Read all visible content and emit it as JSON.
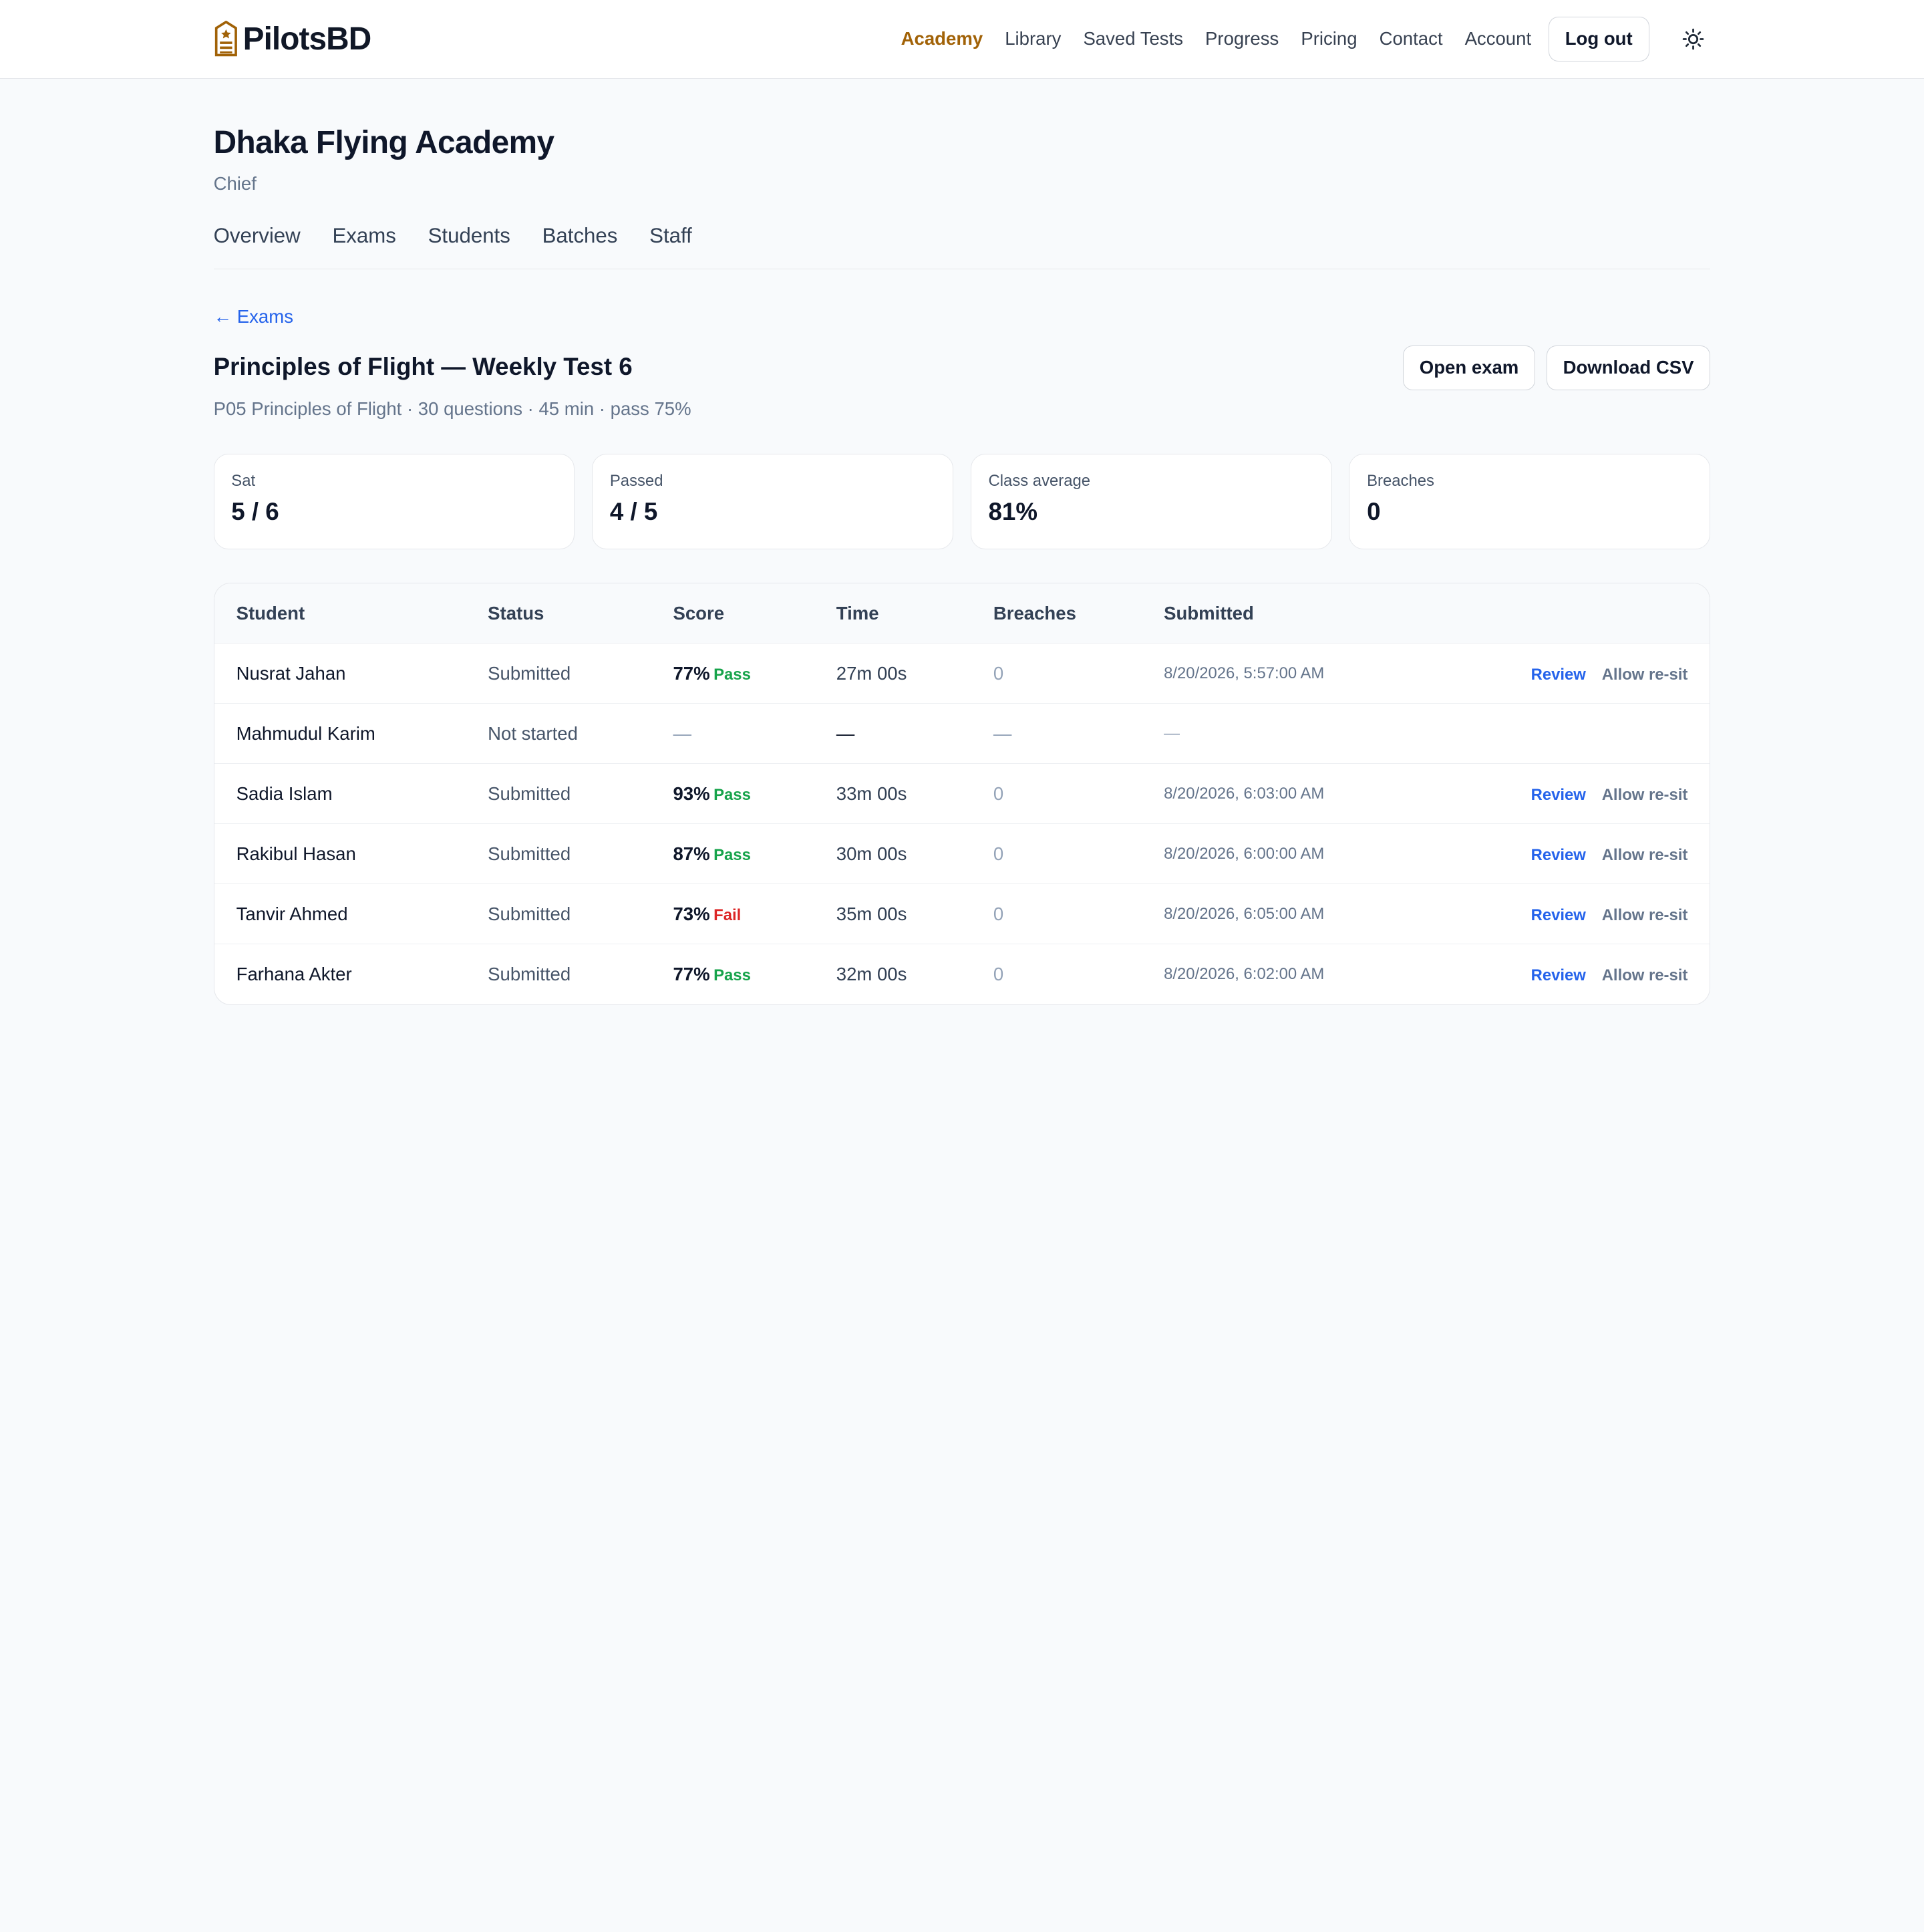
{
  "brand": {
    "name": "PilotsBD",
    "logo": "academy-badge-icon"
  },
  "nav": {
    "items": [
      {
        "label": "Academy",
        "active": true
      },
      {
        "label": "Library"
      },
      {
        "label": "Saved Tests"
      },
      {
        "label": "Progress"
      },
      {
        "label": "Pricing"
      },
      {
        "label": "Contact"
      },
      {
        "label": "Account"
      }
    ],
    "logout_label": "Log out",
    "theme_icon": "sun-icon"
  },
  "academy": {
    "title": "Dhaka Flying Academy",
    "role": "Chief"
  },
  "tabs": [
    {
      "label": "Overview"
    },
    {
      "label": "Exams"
    },
    {
      "label": "Students"
    },
    {
      "label": "Batches"
    },
    {
      "label": "Staff"
    }
  ],
  "back_link": "← Exams",
  "exam": {
    "title": "Principles of Flight — Weekly Test 6",
    "meta": "P05 Principles of Flight · 30 questions · 45 min · pass 75%",
    "open_label": "Open exam",
    "download_label": "Download CSV"
  },
  "stats": [
    {
      "label": "Sat",
      "value": "5 / 6"
    },
    {
      "label": "Passed",
      "value": "4 / 5"
    },
    {
      "label": "Class average",
      "value": "81%"
    },
    {
      "label": "Breaches",
      "value": "0"
    }
  ],
  "table": {
    "headers": {
      "student": "Student",
      "status": "Status",
      "score": "Score",
      "time": "Time",
      "breaches": "Breaches",
      "submitted": "Submitted"
    },
    "review_label": "Review",
    "resit_label": "Allow re-sit",
    "rows": [
      {
        "student": "Nusrat Jahan",
        "status": "Submitted",
        "score": "77%",
        "result": "Pass",
        "time": "27m 00s",
        "breaches": "0",
        "submitted": "8/20/2026, 5:57:00 AM",
        "actions": true
      },
      {
        "student": "Mahmudul Karim",
        "status": "Not started",
        "score": "—",
        "result": "",
        "time": "—",
        "breaches": "—",
        "submitted": "—",
        "actions": false
      },
      {
        "student": "Sadia Islam",
        "status": "Submitted",
        "score": "93%",
        "result": "Pass",
        "time": "33m 00s",
        "breaches": "0",
        "submitted": "8/20/2026, 6:03:00 AM",
        "actions": true
      },
      {
        "student": "Rakibul Hasan",
        "status": "Submitted",
        "score": "87%",
        "result": "Pass",
        "time": "30m 00s",
        "breaches": "0",
        "submitted": "8/20/2026, 6:00:00 AM",
        "actions": true
      },
      {
        "student": "Tanvir Ahmed",
        "status": "Submitted",
        "score": "73%",
        "result": "Fail",
        "time": "35m 00s",
        "breaches": "0",
        "submitted": "8/20/2026, 6:05:00 AM",
        "actions": true
      },
      {
        "student": "Farhana Akter",
        "status": "Submitted",
        "score": "77%",
        "result": "Pass",
        "time": "32m 00s",
        "breaches": "0",
        "submitted": "8/20/2026, 6:02:00 AM",
        "actions": true
      }
    ]
  },
  "colors": {
    "accent": "#a16207",
    "link": "#2563eb",
    "pass": "#16a34a",
    "fail": "#dc2626"
  }
}
